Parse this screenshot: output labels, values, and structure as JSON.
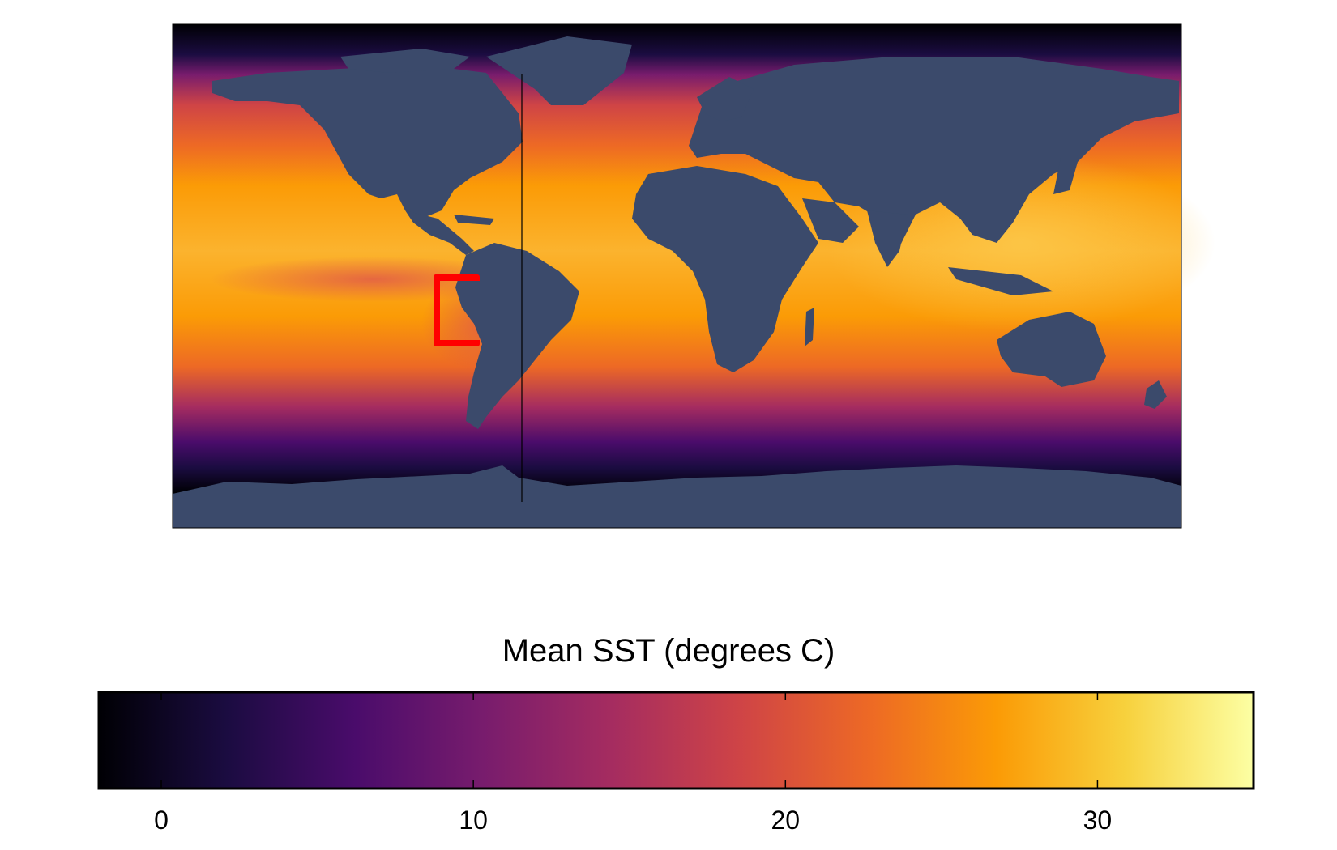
{
  "map": {
    "type": "global sea surface temperature map",
    "land_color": "#3b4a6b",
    "ocean_colormap": "inferno",
    "highlight_region": "Eastern equatorial Pacific off Peru/Ecuador coast",
    "highlight_color": "#ff0000"
  },
  "colorbar": {
    "title": "Mean SST (degrees C)",
    "min": -2,
    "max": 35,
    "ticks": [
      0,
      10,
      20,
      30
    ],
    "tick_labels": [
      "0",
      "10",
      "20",
      "30"
    ],
    "stops": [
      "#000004",
      "#1b0c41",
      "#4a0c6b",
      "#781c6d",
      "#a52c60",
      "#cf4446",
      "#ed6925",
      "#fb9b06",
      "#f7d13d",
      "#fcffa4"
    ]
  }
}
